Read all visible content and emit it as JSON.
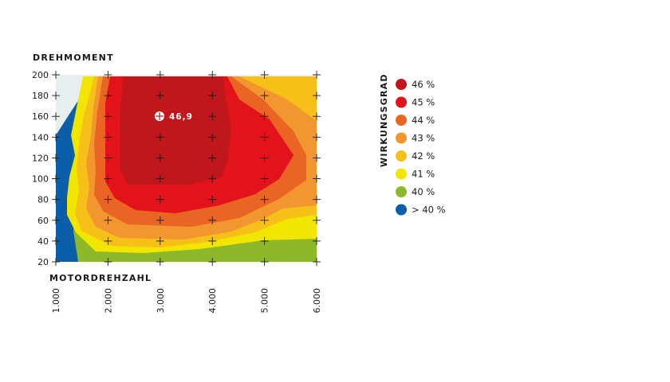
{
  "chart_data": {
    "type": "heatmap",
    "title": "",
    "ylabel": "DREHMOMENT",
    "xlabel": "MOTORDREHZAHL",
    "x_ticks": [
      "1.000",
      "2.000",
      "3.000",
      "4.000",
      "5.000",
      "6.000"
    ],
    "y_ticks": [
      "20",
      "40",
      "60",
      "80",
      "100",
      "120",
      "140",
      "160",
      "180",
      "200"
    ],
    "xlim": [
      1000,
      6000
    ],
    "ylim": [
      20,
      200
    ],
    "grid_markers": "plus crosses at every x/y tick intersection",
    "legend_title": "WIRKUNGSGRAD",
    "legend_position": "right",
    "bands": [
      {
        "label": "46 %",
        "color": "#c0161c"
      },
      {
        "label": "45 %",
        "color": "#e2131b"
      },
      {
        "label": "44 %",
        "color": "#ea6423"
      },
      {
        "label": "43 %",
        "color": "#f2962f"
      },
      {
        "label": "42 %",
        "color": "#f6c018"
      },
      {
        "label": "41 %",
        "color": "#f2e500"
      },
      {
        "label": "40 %",
        "color": "#8cb829"
      },
      {
        "label": "> 40 %",
        "color": "#0a5fa8"
      }
    ],
    "empty_region_color": "#e8edf0",
    "annotation": {
      "label": "46,9",
      "x": 3000,
      "y": 161
    }
  }
}
